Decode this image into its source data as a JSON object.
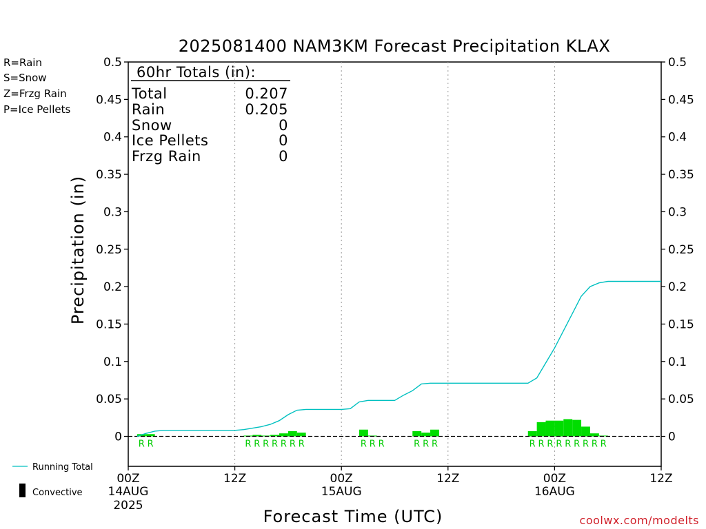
{
  "title": "2025081400 NAM3KM Forecast Precipitation KLAX",
  "ptype_legend": [
    {
      "text": "R=Rain",
      "color": "#22cc22"
    },
    {
      "text": "S=Snow",
      "color": "#3a4fe0"
    },
    {
      "text": "Z=Frzg Rain",
      "color": "#f0903a"
    },
    {
      "text": "P=Ice Pellets",
      "color": "#e0208a"
    }
  ],
  "totals_box": {
    "header": "60hr Totals (in):",
    "rows": [
      {
        "label": "Total",
        "value": "0.207"
      },
      {
        "label": "Rain",
        "value": "0.205"
      },
      {
        "label": "Snow",
        "value": "0"
      },
      {
        "label": "Ice Pellets",
        "value": "0"
      },
      {
        "label": "Frzg Rain",
        "value": "0"
      }
    ]
  },
  "series_legend": {
    "running_total": "Running Total",
    "convective": "Convective"
  },
  "watermark": "coolwx.com/modelts",
  "colors": {
    "running_total": "#00c0c0",
    "rain": "#00dd00",
    "rain_text": "#00cc00",
    "axis": "#000000",
    "watermark": "#d0202a"
  },
  "chart_data": {
    "type": "bar",
    "title": "2025081400 NAM3KM Forecast Precipitation KLAX",
    "xlabel": "Forecast Time (UTC)",
    "ylabel": "Precipitation (in)",
    "xlim": [
      0,
      60
    ],
    "ylim": [
      -0.04,
      0.5
    ],
    "yticks": [
      0,
      0.05,
      0.1,
      0.15,
      0.2,
      0.25,
      0.3,
      0.35,
      0.4,
      0.45,
      0.5
    ],
    "ytick_labels": [
      "0",
      "0.05",
      "0.1",
      "0.15",
      "0.2",
      "0.25",
      "0.3",
      "0.35",
      "0.4",
      "0.45",
      "0.5"
    ],
    "xticks": [
      {
        "hour": 0,
        "label": "00Z",
        "date": "14AUG",
        "year": "2025"
      },
      {
        "hour": 12,
        "label": "12Z"
      },
      {
        "hour": 24,
        "label": "00Z",
        "date": "15AUG"
      },
      {
        "hour": 36,
        "label": "12Z"
      },
      {
        "hour": 48,
        "label": "00Z",
        "date": "16AUG"
      },
      {
        "hour": 60,
        "label": "12Z"
      }
    ],
    "grid": "dotted vertical at 12Z and 00Z",
    "bars": [
      {
        "hour": 1.5,
        "value": 0.003,
        "ptype": "R"
      },
      {
        "hour": 2.5,
        "value": 0.003,
        "ptype": "R"
      },
      {
        "hour": 13.5,
        "value": 0.001,
        "ptype": "R"
      },
      {
        "hour": 14.5,
        "value": 0.002,
        "ptype": "R"
      },
      {
        "hour": 15.5,
        "value": 0.001,
        "ptype": "R"
      },
      {
        "hour": 16.5,
        "value": 0.002,
        "ptype": "R"
      },
      {
        "hour": 17.5,
        "value": 0.004,
        "ptype": "R"
      },
      {
        "hour": 18.5,
        "value": 0.007,
        "ptype": "R"
      },
      {
        "hour": 19.5,
        "value": 0.005,
        "ptype": "R"
      },
      {
        "hour": 26.5,
        "value": 0.009,
        "ptype": "R"
      },
      {
        "hour": 27.5,
        "value": 0.001,
        "ptype": "R"
      },
      {
        "hour": 28.5,
        "value": 0.0,
        "ptype": "R"
      },
      {
        "hour": 32.5,
        "value": 0.007,
        "ptype": "R"
      },
      {
        "hour": 33.5,
        "value": 0.005,
        "ptype": "R"
      },
      {
        "hour": 34.5,
        "value": 0.009,
        "ptype": "R"
      },
      {
        "hour": 45.5,
        "value": 0.007,
        "ptype": "R"
      },
      {
        "hour": 46.5,
        "value": 0.019,
        "ptype": "R"
      },
      {
        "hour": 47.5,
        "value": 0.021,
        "ptype": "R"
      },
      {
        "hour": 48.5,
        "value": 0.021,
        "ptype": "R"
      },
      {
        "hour": 49.5,
        "value": 0.023,
        "ptype": "R"
      },
      {
        "hour": 50.5,
        "value": 0.022,
        "ptype": "R"
      },
      {
        "hour": 51.5,
        "value": 0.013,
        "ptype": "R"
      },
      {
        "hour": 52.5,
        "value": 0.004,
        "ptype": "R"
      },
      {
        "hour": 53.5,
        "value": 0.001,
        "ptype": "R"
      }
    ],
    "running_total": {
      "name": "Running Total",
      "x": [
        1,
        2,
        3,
        4,
        12,
        13,
        14,
        15,
        16,
        17,
        18,
        19,
        20,
        21,
        24,
        25,
        26,
        27,
        28,
        29,
        30,
        31,
        32,
        33,
        34,
        35,
        36,
        45,
        46,
        47,
        48,
        49,
        50,
        51,
        52,
        53,
        54,
        60
      ],
      "values": [
        0.0,
        0.004,
        0.007,
        0.008,
        0.008,
        0.009,
        0.011,
        0.013,
        0.016,
        0.021,
        0.029,
        0.035,
        0.036,
        0.036,
        0.036,
        0.037,
        0.046,
        0.048,
        0.048,
        0.048,
        0.048,
        0.055,
        0.061,
        0.07,
        0.071,
        0.071,
        0.071,
        0.071,
        0.078,
        0.098,
        0.118,
        0.141,
        0.164,
        0.187,
        0.2,
        0.205,
        0.207,
        0.207
      ]
    }
  }
}
